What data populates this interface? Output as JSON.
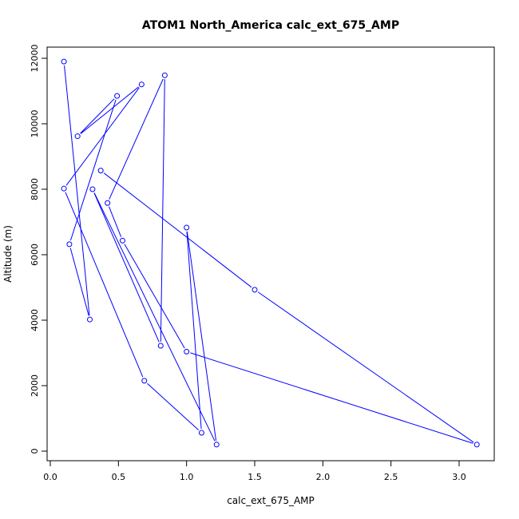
{
  "chart_data": {
    "type": "line",
    "title": "ATOM1 North_America calc_ext_675_AMP",
    "xlabel": "calc_ext_675_AMP",
    "ylabel": "Altitude (m)",
    "xlim": [
      0,
      3.2
    ],
    "ylim": [
      0,
      12000
    ],
    "xticks": [
      0,
      0.5,
      1,
      1.5,
      2,
      2.5,
      3
    ],
    "xtick_labels": [
      "0.0",
      "0.5",
      "1.0",
      "1.5",
      "2.0",
      "2.5",
      "3.0"
    ],
    "yticks": [
      0,
      2000,
      4000,
      6000,
      8000,
      10000,
      12000
    ],
    "ytick_labels": [
      "0",
      "2000",
      "4000",
      "6000",
      "8000",
      "10000",
      "12000"
    ],
    "grid": false,
    "color": "#0000ff",
    "markers": "open-circle",
    "series": [
      {
        "points": [
          {
            "x": 0.1,
            "y": 11900
          },
          {
            "x": 0.29,
            "y": 4020
          },
          {
            "x": 0.14,
            "y": 6320
          },
          {
            "x": 0.49,
            "y": 10850
          },
          {
            "x": 0.2,
            "y": 9620
          },
          {
            "x": 0.67,
            "y": 11200
          },
          {
            "x": 0.1,
            "y": 8020
          },
          {
            "x": 0.69,
            "y": 2150
          },
          {
            "x": 1.11,
            "y": 560
          },
          {
            "x": 1.0,
            "y": 6830
          },
          {
            "x": 1.22,
            "y": 200
          },
          {
            "x": 0.31,
            "y": 8000
          },
          {
            "x": 0.81,
            "y": 3220
          },
          {
            "x": 0.84,
            "y": 11480
          },
          {
            "x": 0.42,
            "y": 7580
          },
          {
            "x": 0.53,
            "y": 6430
          },
          {
            "x": 1.0,
            "y": 3040
          },
          {
            "x": 3.13,
            "y": 200
          },
          {
            "x": 1.5,
            "y": 4930
          },
          {
            "x": 0.37,
            "y": 8570
          }
        ]
      }
    ]
  }
}
